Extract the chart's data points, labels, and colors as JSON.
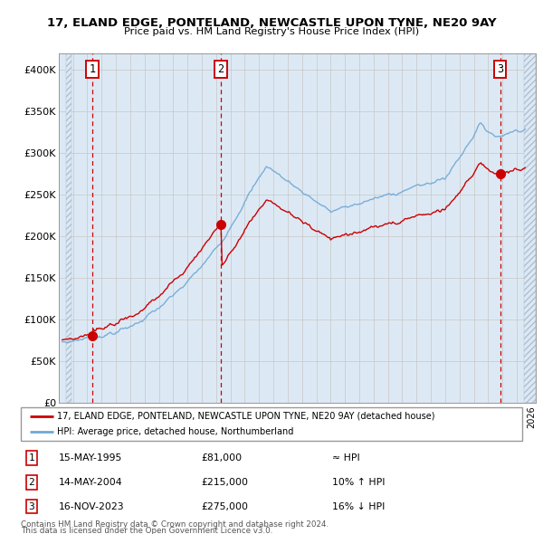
{
  "title_line1": "17, ELAND EDGE, PONTELAND, NEWCASTLE UPON TYNE, NE20 9AY",
  "title_line2": "Price paid vs. HM Land Registry's House Price Index (HPI)",
  "legend_line1": "17, ELAND EDGE, PONTELAND, NEWCASTLE UPON TYNE, NE20 9AY (detached house)",
  "legend_line2": "HPI: Average price, detached house, Northumberland",
  "sale1_date": "15-MAY-1995",
  "sale1_price": 81000,
  "sale1_hpi": "≈ HPI",
  "sale2_date": "14-MAY-2004",
  "sale2_price": 215000,
  "sale2_hpi": "10% ↑ HPI",
  "sale3_date": "16-NOV-2023",
  "sale3_price": 275000,
  "sale3_hpi": "16% ↓ HPI",
  "footer1": "Contains HM Land Registry data © Crown copyright and database right 2024.",
  "footer2": "This data is licensed under the Open Government Licence v3.0.",
  "hpi_color": "#6fa8d4",
  "price_color": "#cc0000",
  "dot_color": "#cc0000",
  "vline_color": "#cc0000",
  "background_color": "#dce9f5",
  "plot_bg": "#ffffff",
  "grid_color": "#cccccc",
  "ylim": [
    0,
    420000
  ],
  "yticks": [
    0,
    50000,
    100000,
    150000,
    200000,
    250000,
    300000,
    350000,
    400000
  ],
  "xstart": 1993.5,
  "xend": 2026.3
}
